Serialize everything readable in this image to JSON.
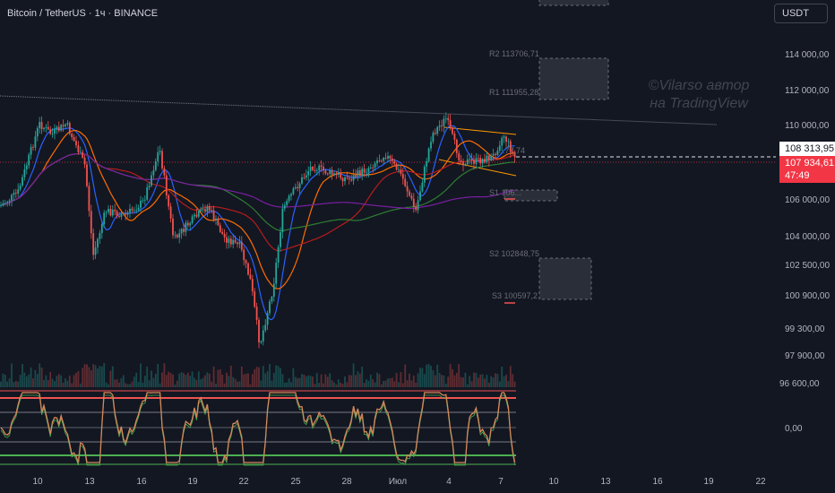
{
  "header": {
    "symbol_title": "Bitcoin / TetherUS · 1ч · BINANCE",
    "currency_button": "USDT"
  },
  "watermark": {
    "line1": "©Vilarso автор",
    "line2": "на TradingView"
  },
  "price_scale": {
    "ticks": [
      "114 000,00",
      "112 000,00",
      "110 000,00",
      "106 000,00",
      "104 000,00",
      "102 500,00",
      "100 900,00",
      "99 300,00",
      "97 900,00",
      "96 600,00"
    ],
    "indicator_tick": "0,00",
    "last_price_badge": "108 313,95",
    "current_price_badge": "107 934,61",
    "countdown": "47:49"
  },
  "time_axis": {
    "labels": [
      "10",
      "13",
      "16",
      "19",
      "22",
      "25",
      "28",
      "Июл",
      "4",
      "7",
      "10",
      "13",
      "16",
      "19",
      "22"
    ]
  },
  "pivot_labels": [
    "R2 113706,71",
    "R1 111955,28",
    "S1 106...",
    "S2 102848,75",
    "S3 100597,2",
    "...77,74"
  ],
  "colors": {
    "background": "#131722",
    "up": "#26a69a",
    "down": "#ef5350",
    "badge_red": "#f23645"
  }
}
